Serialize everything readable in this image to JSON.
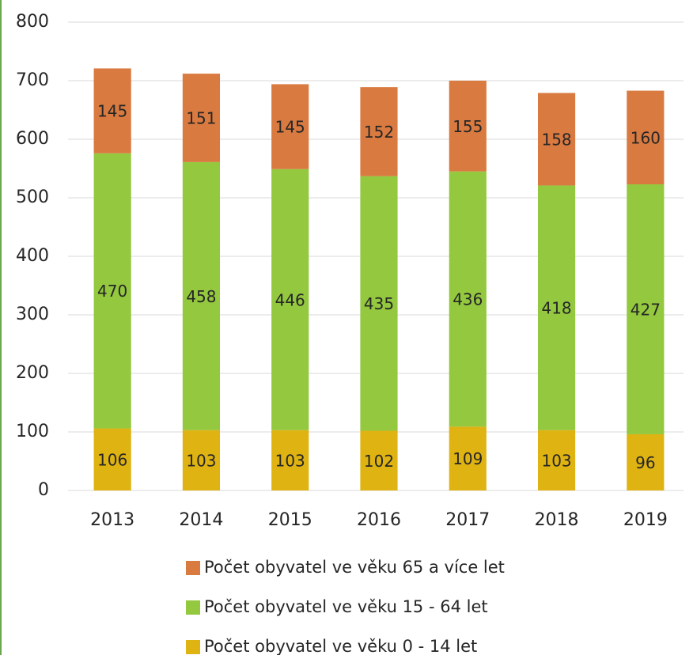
{
  "chart_data": {
    "type": "stacked_bar",
    "categories": [
      "2013",
      "2014",
      "2015",
      "2016",
      "2017",
      "2018",
      "2019"
    ],
    "series": [
      {
        "name": "Počet obyvatel ve věku 0 - 14 let",
        "color": "#dfb312",
        "values": [
          106,
          103,
          103,
          102,
          109,
          103,
          96
        ]
      },
      {
        "name": "Počet obyvatel ve věku 15 - 64 let",
        "color": "#93c83f",
        "values": [
          470,
          458,
          446,
          435,
          436,
          418,
          427
        ]
      },
      {
        "name": "Počet obyvatel ve věku 65 a více let",
        "color": "#d97a40",
        "values": [
          145,
          151,
          145,
          152,
          155,
          158,
          160
        ]
      }
    ],
    "ylim": [
      0,
      800
    ],
    "yticks": [
      0,
      100,
      200,
      300,
      400,
      500,
      600,
      700,
      800
    ],
    "grid": true,
    "legend": "bottom"
  }
}
